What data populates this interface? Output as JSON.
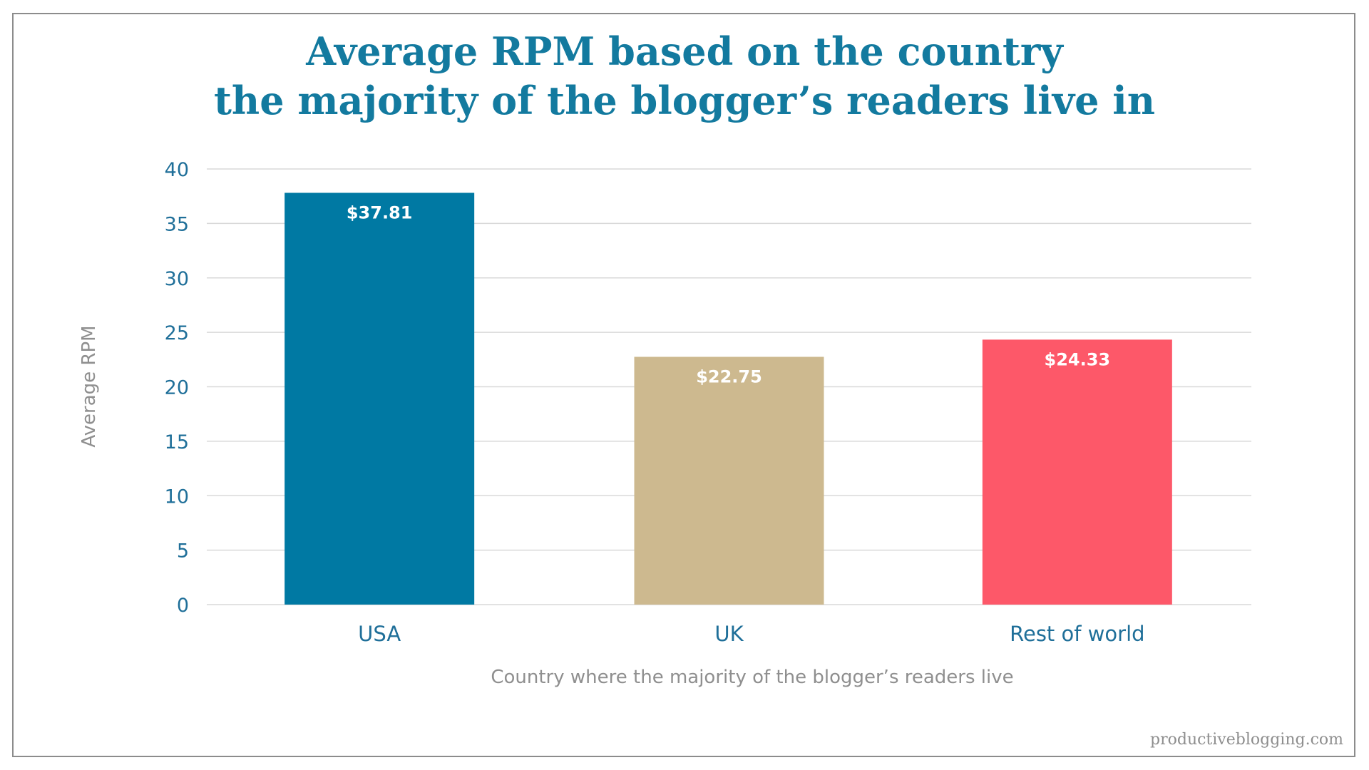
{
  "chart_data": {
    "type": "bar",
    "title_lines": [
      "Average RPM based on the country",
      "the majority of the blogger’s readers live in"
    ],
    "categories": [
      "USA",
      "UK",
      "Rest of world"
    ],
    "values": [
      37.81,
      22.75,
      24.33
    ],
    "data_labels": [
      "$37.81",
      "$22.75",
      "$24.33"
    ],
    "colors": [
      "#0079a3",
      "#cdb98f",
      "#fd5869"
    ],
    "xlabel": "Country where the majority of the blogger’s readers live",
    "ylabel": "Average RPM",
    "ylim": [
      0,
      40
    ],
    "yticks": [
      0,
      5,
      10,
      15,
      20,
      25,
      30,
      35,
      40
    ],
    "grid": true,
    "gridline_color": "#d9d9d9"
  },
  "watermark": "productiveblogging.com"
}
